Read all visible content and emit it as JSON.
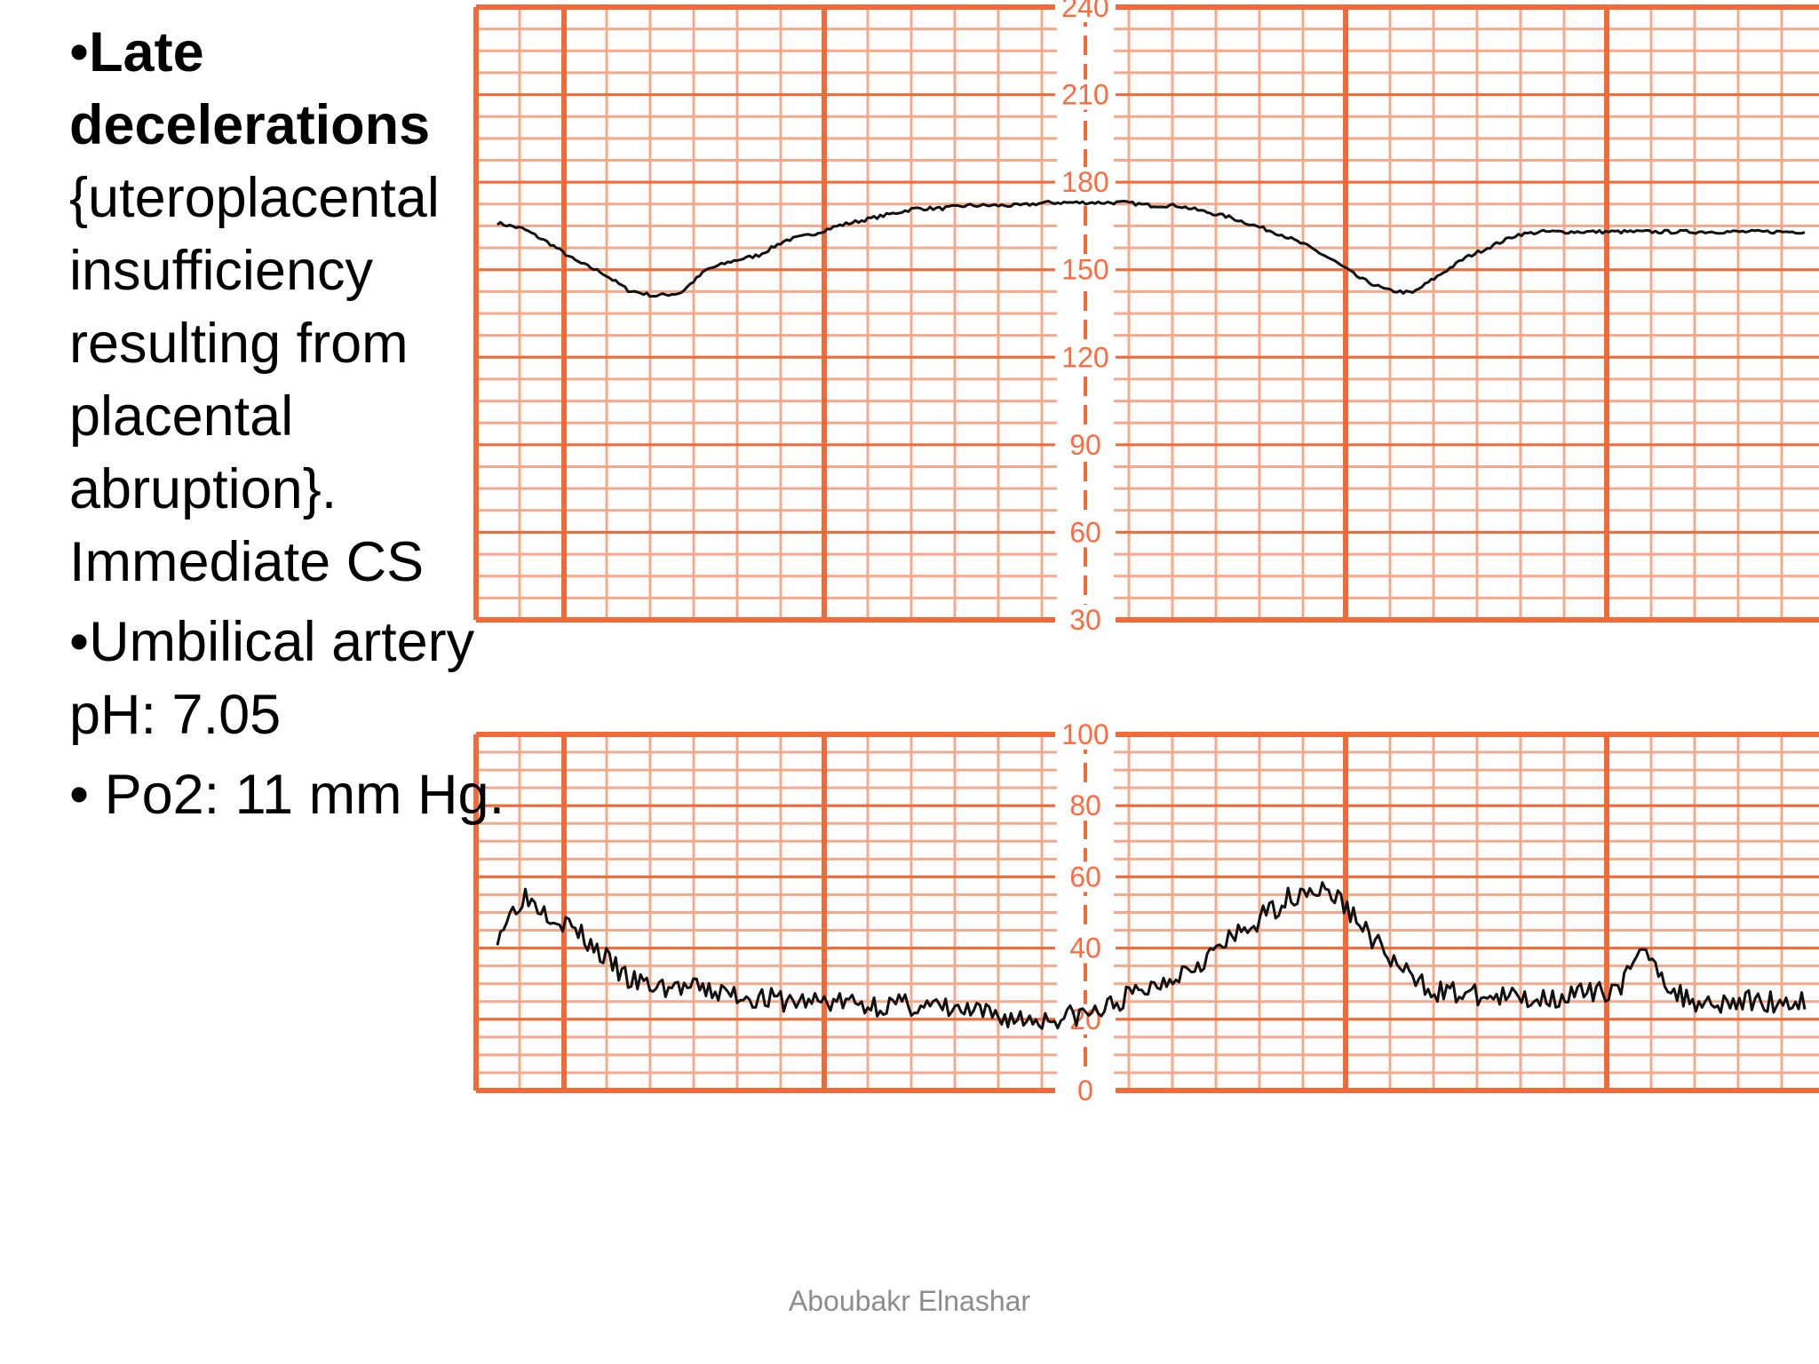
{
  "slide": {
    "bullet_1": {
      "marker": "•",
      "bold": "Late decelerations",
      "rest": "{uteroplacental insufficiency resulting from placental abruption}. Immediate CS"
    },
    "bullet_2": {
      "marker": "•",
      "text": "Umbilical artery pH: 7.05"
    },
    "bullet_3": {
      "marker": "• ",
      "text": "Po2: 11 mm Hg."
    },
    "footer": "Aboubakr Elnashar"
  },
  "colors": {
    "grid_major": "#f26a38",
    "grid_minor": "#f6a88a",
    "label": "#ff6a3d",
    "trace": "#111111"
  },
  "chart_data": [
    {
      "type": "line",
      "name": "fetal-heart-rate",
      "ylim": [
        30,
        240
      ],
      "yticks": [
        "240",
        "210",
        "180",
        "150",
        "120",
        "90",
        "60",
        "30"
      ],
      "x": [
        0,
        0.02,
        0.04,
        0.06,
        0.08,
        0.1,
        0.12,
        0.14,
        0.16,
        0.18,
        0.2,
        0.22,
        0.24,
        0.26,
        0.28,
        0.3,
        0.32,
        0.34,
        0.36,
        0.38,
        0.4,
        0.42,
        0.44,
        0.46,
        0.48,
        0.5,
        0.52,
        0.54,
        0.56,
        0.58,
        0.6,
        0.62,
        0.64,
        0.66,
        0.68,
        0.7,
        0.72,
        0.74,
        0.76,
        0.78,
        0.8,
        0.82,
        0.84,
        0.86,
        0.88,
        0.9,
        0.92,
        0.94,
        0.96,
        0.98,
        1.0
      ],
      "y": [
        166,
        164,
        159,
        153,
        149,
        143,
        141,
        142,
        150,
        153,
        155,
        160,
        162,
        165,
        167,
        169,
        171,
        171,
        172,
        172,
        172,
        173,
        173,
        173,
        173,
        172,
        172,
        170,
        168,
        165,
        162,
        158,
        153,
        147,
        143,
        142,
        148,
        154,
        158,
        162,
        163,
        163,
        163,
        163,
        163,
        163,
        163,
        163,
        163,
        163,
        163
      ]
    },
    {
      "type": "line",
      "name": "uterine-contractions",
      "ylim": [
        0,
        100
      ],
      "yticks": [
        "100",
        "80",
        "60",
        "40",
        "20",
        "0"
      ],
      "x": [
        0,
        0.02,
        0.04,
        0.06,
        0.08,
        0.1,
        0.12,
        0.14,
        0.16,
        0.18,
        0.2,
        0.22,
        0.24,
        0.26,
        0.28,
        0.3,
        0.32,
        0.34,
        0.36,
        0.38,
        0.4,
        0.42,
        0.44,
        0.46,
        0.48,
        0.5,
        0.52,
        0.54,
        0.56,
        0.58,
        0.6,
        0.62,
        0.64,
        0.66,
        0.68,
        0.7,
        0.72,
        0.74,
        0.76,
        0.78,
        0.8,
        0.82,
        0.84,
        0.86,
        0.88,
        0.9,
        0.92,
        0.94,
        0.96,
        0.98,
        1.0
      ],
      "y": [
        44,
        55,
        50,
        45,
        38,
        31,
        29,
        29,
        28,
        27,
        26,
        25,
        25,
        25,
        24,
        24,
        24,
        23,
        22,
        21,
        20,
        20,
        21,
        22,
        26,
        29,
        33,
        37,
        42,
        47,
        53,
        57,
        55,
        47,
        38,
        31,
        28,
        27,
        26,
        26,
        26,
        27,
        27,
        30,
        40,
        27,
        25,
        25,
        25,
        25,
        25
      ]
    }
  ]
}
